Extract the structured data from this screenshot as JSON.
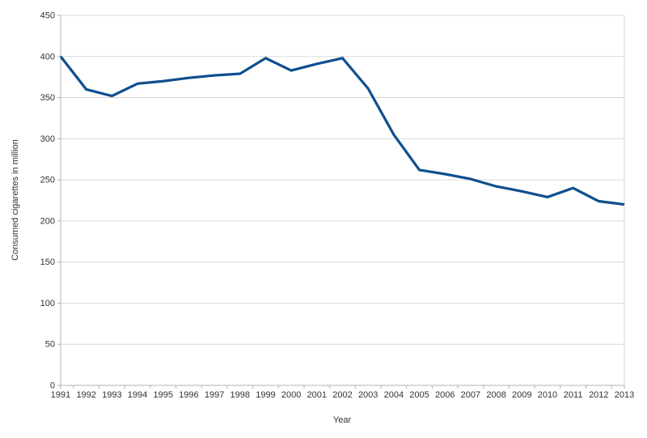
{
  "chart_data": {
    "type": "line",
    "title": "",
    "xlabel": "Year",
    "ylabel": "Consumed cigarettes in million",
    "categories": [
      "1991",
      "1992",
      "1993",
      "1994",
      "1995",
      "1996",
      "1997",
      "1998",
      "1999",
      "2000",
      "2001",
      "2002",
      "2003",
      "2004",
      "2005",
      "2006",
      "2007",
      "2008",
      "2009",
      "2010",
      "2011",
      "2012",
      "2013"
    ],
    "series": [
      {
        "name": "Consumed cigarettes",
        "values": [
          400,
          360,
          352,
          367,
          370,
          374,
          377,
          379,
          398,
          383,
          391,
          398,
          361,
          305,
          262,
          257,
          251,
          242,
          236,
          229,
          240,
          224,
          220
        ]
      }
    ],
    "ylim": [
      0,
      450
    ],
    "ytick_step": 50,
    "grid": true,
    "legend_position": "none",
    "colors": {
      "line": "#0e4f8f",
      "grid": "#d9d9d9",
      "axis": "#b3b3b3",
      "text": "#333333",
      "background": "#ffffff"
    }
  }
}
